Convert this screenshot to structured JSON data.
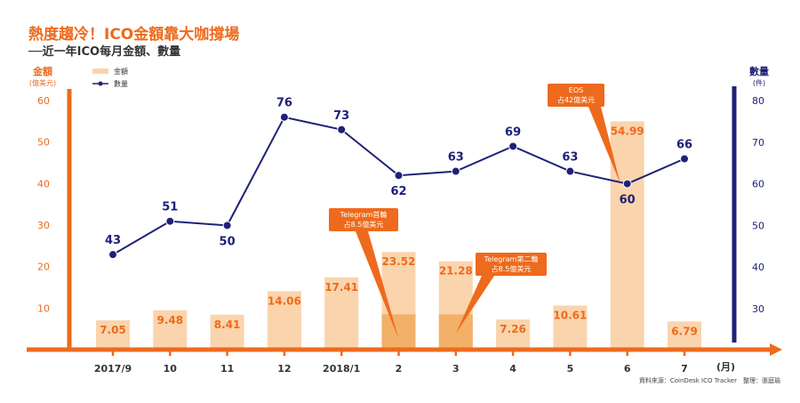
{
  "header": {
    "title": "熱度趨冷！ICO金額靠大咖撐場",
    "subtitle": "──近一年ICO每月金額、數量"
  },
  "axis_titles": {
    "left": "金額",
    "left_unit": "(億美元)",
    "right": "數量",
    "right_unit": "(件)",
    "x_unit": "(月)"
  },
  "legend": {
    "amount": "金額",
    "count": "數量"
  },
  "source": "資料來源：CoinDesk ICO Tracker　整理：張庭瑜",
  "colors": {
    "orange": "#ee6a1c",
    "bar": "#fad4ac",
    "bar_highlight": "#f2b068",
    "navy": "#1e2176",
    "callout": "#ee6a1c"
  },
  "chart_data": {
    "type": "bar+line",
    "categories": [
      "2017/9",
      "10",
      "11",
      "12",
      "2018/1",
      "2",
      "3",
      "4",
      "5",
      "6",
      "7"
    ],
    "series": [
      {
        "name": "金額",
        "axis": "left",
        "type": "bar",
        "values": [
          7.05,
          9.48,
          8.41,
          14.06,
          17.41,
          23.52,
          21.28,
          7.26,
          10.61,
          54.99,
          6.79
        ],
        "labels": [
          "7.05",
          "9.48",
          "8.41",
          "14.06",
          "17.41",
          "23.52",
          "21.28",
          "7.26",
          "10.61",
          "54.99",
          "6.79"
        ]
      },
      {
        "name": "數量",
        "axis": "right",
        "type": "line",
        "values": [
          43,
          51,
          50,
          76,
          73,
          62,
          63,
          69,
          63,
          60,
          66
        ],
        "labels": [
          "43",
          "51",
          "50",
          "76",
          "73",
          "62",
          "63",
          "69",
          "63",
          "60",
          "66"
        ]
      }
    ],
    "highlight_segments": [
      {
        "index": 5,
        "value": 8.5
      },
      {
        "index": 6,
        "value": 8.5
      }
    ],
    "left_axis": {
      "min": 0,
      "max": 60,
      "ticks": [
        10,
        20,
        30,
        40,
        50,
        60
      ]
    },
    "right_axis": {
      "min": 20,
      "max": 80,
      "ticks": [
        30,
        40,
        50,
        60,
        70,
        80
      ]
    },
    "legend_position": "top-left",
    "grid": false,
    "annotations": [
      {
        "index": 5,
        "lines": [
          "Telegram首輪",
          "占8.5億美元"
        ]
      },
      {
        "index": 6,
        "lines": [
          "Telegram第二輪",
          "占8.5億美元"
        ]
      },
      {
        "index": 9,
        "lines": [
          "EOS",
          "占42億美元"
        ]
      }
    ]
  }
}
